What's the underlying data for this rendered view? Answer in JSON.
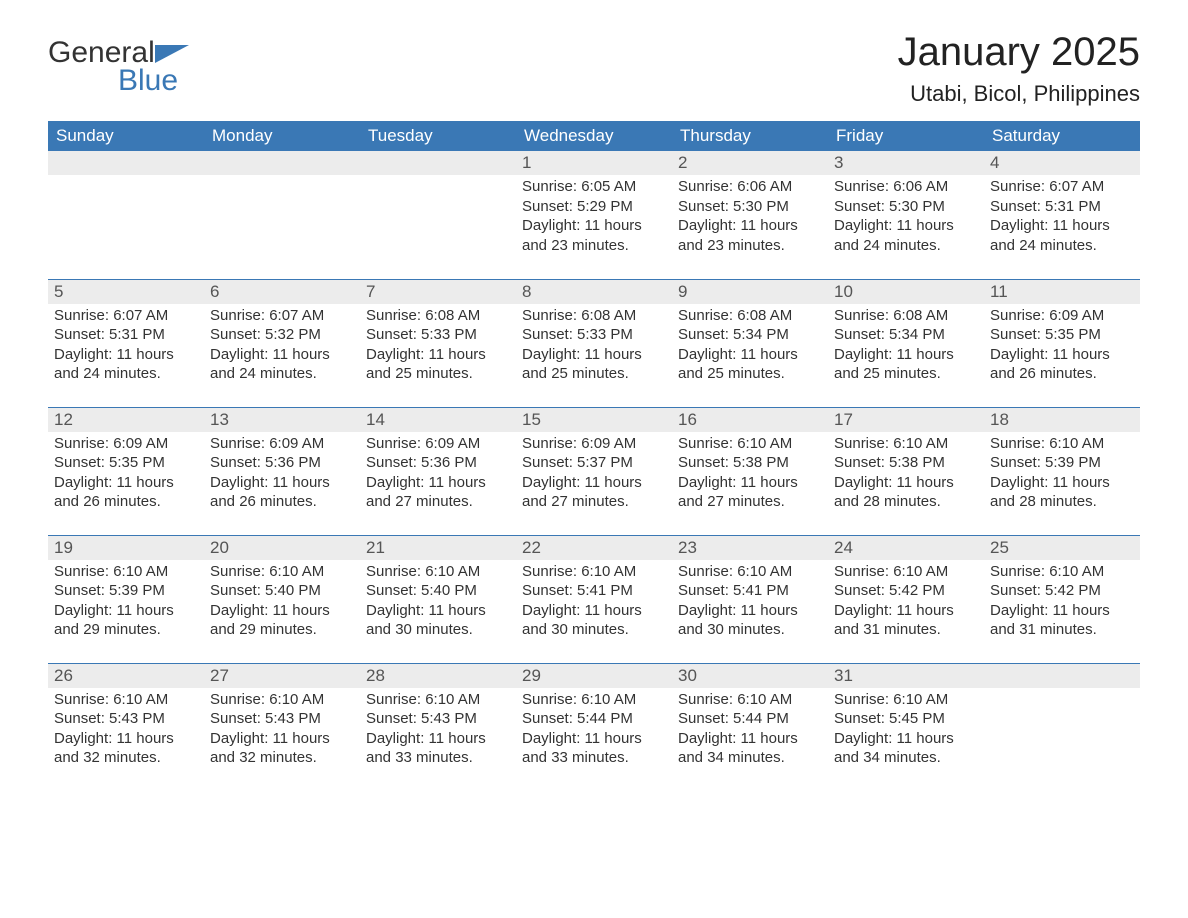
{
  "logo": {
    "text1": "General",
    "text2": "Blue"
  },
  "title": "January 2025",
  "location": "Utabi, Bicol, Philippines",
  "colors": {
    "header_bg": "#3a78b5",
    "header_text": "#ffffff",
    "daynum_bg": "#ececec",
    "body_text": "#333333",
    "page_bg": "#ffffff",
    "row_border": "#3a78b5"
  },
  "layout": {
    "columns": 7,
    "rows": 5,
    "start_day_index": 3,
    "days_in_month": 31
  },
  "weekdays": [
    "Sunday",
    "Monday",
    "Tuesday",
    "Wednesday",
    "Thursday",
    "Friday",
    "Saturday"
  ],
  "days": [
    {
      "n": 1,
      "sunrise": "6:05 AM",
      "sunset": "5:29 PM",
      "dh": 11,
      "dm": 23
    },
    {
      "n": 2,
      "sunrise": "6:06 AM",
      "sunset": "5:30 PM",
      "dh": 11,
      "dm": 23
    },
    {
      "n": 3,
      "sunrise": "6:06 AM",
      "sunset": "5:30 PM",
      "dh": 11,
      "dm": 24
    },
    {
      "n": 4,
      "sunrise": "6:07 AM",
      "sunset": "5:31 PM",
      "dh": 11,
      "dm": 24
    },
    {
      "n": 5,
      "sunrise": "6:07 AM",
      "sunset": "5:31 PM",
      "dh": 11,
      "dm": 24
    },
    {
      "n": 6,
      "sunrise": "6:07 AM",
      "sunset": "5:32 PM",
      "dh": 11,
      "dm": 24
    },
    {
      "n": 7,
      "sunrise": "6:08 AM",
      "sunset": "5:33 PM",
      "dh": 11,
      "dm": 25
    },
    {
      "n": 8,
      "sunrise": "6:08 AM",
      "sunset": "5:33 PM",
      "dh": 11,
      "dm": 25
    },
    {
      "n": 9,
      "sunrise": "6:08 AM",
      "sunset": "5:34 PM",
      "dh": 11,
      "dm": 25
    },
    {
      "n": 10,
      "sunrise": "6:08 AM",
      "sunset": "5:34 PM",
      "dh": 11,
      "dm": 25
    },
    {
      "n": 11,
      "sunrise": "6:09 AM",
      "sunset": "5:35 PM",
      "dh": 11,
      "dm": 26
    },
    {
      "n": 12,
      "sunrise": "6:09 AM",
      "sunset": "5:35 PM",
      "dh": 11,
      "dm": 26
    },
    {
      "n": 13,
      "sunrise": "6:09 AM",
      "sunset": "5:36 PM",
      "dh": 11,
      "dm": 26
    },
    {
      "n": 14,
      "sunrise": "6:09 AM",
      "sunset": "5:36 PM",
      "dh": 11,
      "dm": 27
    },
    {
      "n": 15,
      "sunrise": "6:09 AM",
      "sunset": "5:37 PM",
      "dh": 11,
      "dm": 27
    },
    {
      "n": 16,
      "sunrise": "6:10 AM",
      "sunset": "5:38 PM",
      "dh": 11,
      "dm": 27
    },
    {
      "n": 17,
      "sunrise": "6:10 AM",
      "sunset": "5:38 PM",
      "dh": 11,
      "dm": 28
    },
    {
      "n": 18,
      "sunrise": "6:10 AM",
      "sunset": "5:39 PM",
      "dh": 11,
      "dm": 28
    },
    {
      "n": 19,
      "sunrise": "6:10 AM",
      "sunset": "5:39 PM",
      "dh": 11,
      "dm": 29
    },
    {
      "n": 20,
      "sunrise": "6:10 AM",
      "sunset": "5:40 PM",
      "dh": 11,
      "dm": 29
    },
    {
      "n": 21,
      "sunrise": "6:10 AM",
      "sunset": "5:40 PM",
      "dh": 11,
      "dm": 30
    },
    {
      "n": 22,
      "sunrise": "6:10 AM",
      "sunset": "5:41 PM",
      "dh": 11,
      "dm": 30
    },
    {
      "n": 23,
      "sunrise": "6:10 AM",
      "sunset": "5:41 PM",
      "dh": 11,
      "dm": 30
    },
    {
      "n": 24,
      "sunrise": "6:10 AM",
      "sunset": "5:42 PM",
      "dh": 11,
      "dm": 31
    },
    {
      "n": 25,
      "sunrise": "6:10 AM",
      "sunset": "5:42 PM",
      "dh": 11,
      "dm": 31
    },
    {
      "n": 26,
      "sunrise": "6:10 AM",
      "sunset": "5:43 PM",
      "dh": 11,
      "dm": 32
    },
    {
      "n": 27,
      "sunrise": "6:10 AM",
      "sunset": "5:43 PM",
      "dh": 11,
      "dm": 32
    },
    {
      "n": 28,
      "sunrise": "6:10 AM",
      "sunset": "5:43 PM",
      "dh": 11,
      "dm": 33
    },
    {
      "n": 29,
      "sunrise": "6:10 AM",
      "sunset": "5:44 PM",
      "dh": 11,
      "dm": 33
    },
    {
      "n": 30,
      "sunrise": "6:10 AM",
      "sunset": "5:44 PM",
      "dh": 11,
      "dm": 34
    },
    {
      "n": 31,
      "sunrise": "6:10 AM",
      "sunset": "5:45 PM",
      "dh": 11,
      "dm": 34
    }
  ],
  "labels": {
    "sunrise": "Sunrise:",
    "sunset": "Sunset:",
    "daylight_prefix": "Daylight:",
    "hours_word": "hours",
    "and_word": "and",
    "minutes_word": "minutes."
  }
}
